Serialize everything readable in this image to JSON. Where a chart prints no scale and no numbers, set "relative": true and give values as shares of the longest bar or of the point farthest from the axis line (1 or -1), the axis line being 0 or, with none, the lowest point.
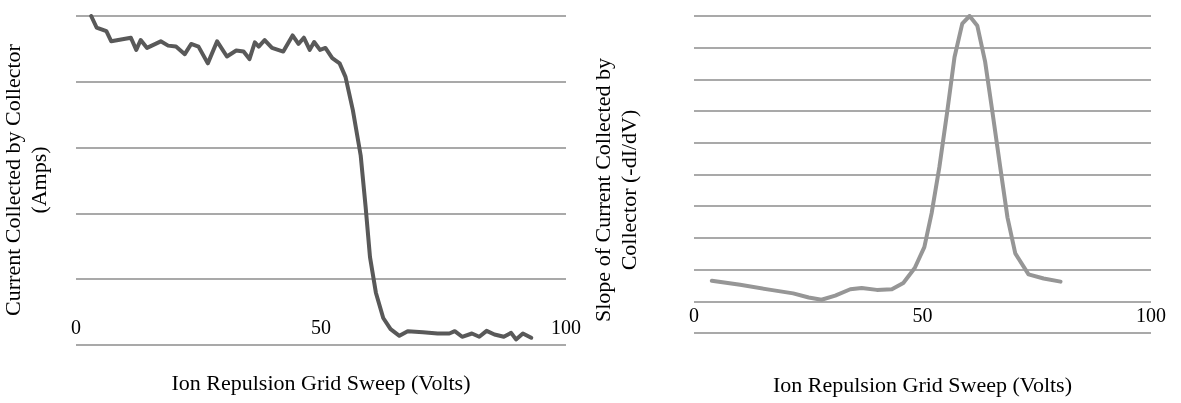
{
  "chart_data": [
    {
      "type": "line",
      "relative": true,
      "xlabel": "Ion Repulsion Grid Sweep (Volts)",
      "ylabel": "Current Collected by Collector (Amps)",
      "xlim": [
        0,
        100
      ],
      "xticks": [
        0,
        50,
        100
      ],
      "grid": "y",
      "marker": "none",
      "line_style": "solid",
      "series": [
        {
          "color": "#595959",
          "x": [
            3.1,
            4.2,
            6.2,
            7.2,
            11.2,
            12.3,
            13.2,
            14.5,
            17.3,
            18.8,
            20.4,
            22.2,
            23.5,
            25,
            26.9,
            28.8,
            30.8,
            32.7,
            34.2,
            35.4,
            36.5,
            37.3,
            38.5,
            40,
            42.3,
            44.2,
            45.4,
            46.5,
            47.7,
            48.6,
            49.8,
            50.9,
            52.3,
            53.8,
            55,
            56.5,
            58.1,
            59.1,
            60,
            61.2,
            62.7,
            64.2,
            66,
            67.7,
            70.8,
            73.8,
            76.2,
            77.3,
            78.8,
            80.8,
            82.3,
            83.8,
            85.4,
            87.3,
            88.8,
            89.8,
            91.2,
            92.9
          ],
          "values": [
            1.0,
            0.965,
            0.954,
            0.923,
            0.934,
            0.897,
            0.927,
            0.903,
            0.923,
            0.91,
            0.907,
            0.884,
            0.915,
            0.907,
            0.856,
            0.923,
            0.877,
            0.895,
            0.892,
            0.869,
            0.92,
            0.907,
            0.927,
            0.903,
            0.892,
            0.941,
            0.915,
            0.934,
            0.897,
            0.921,
            0.897,
            0.903,
            0.872,
            0.856,
            0.815,
            0.714,
            0.576,
            0.421,
            0.267,
            0.159,
            0.082,
            0.048,
            0.028,
            0.042,
            0.039,
            0.035,
            0.035,
            0.042,
            0.025,
            0.035,
            0.025,
            0.043,
            0.032,
            0.025,
            0.037,
            0.017,
            0.035,
            0.022
          ]
        }
      ]
    },
    {
      "type": "line",
      "relative": true,
      "xlabel": "Ion Repulsion Grid Sweep (Volts)",
      "ylabel": "Slope of Current Collected by Collector    (-dI/dV)",
      "xlim": [
        0,
        100
      ],
      "xticks": [
        0,
        50,
        100
      ],
      "grid": "y",
      "marker": "none",
      "line_style": "solid",
      "series": [
        {
          "color": "#969696",
          "x": [
            3.9,
            10.1,
            16.8,
            21.7,
            25.1,
            27.9,
            30.9,
            34.2,
            36.7,
            40,
            43.3,
            45.8,
            48.3,
            50.4,
            52,
            53.7,
            55.4,
            57,
            58.7,
            60.3,
            62,
            63.7,
            65.3,
            67,
            68.6,
            70.3,
            73.2,
            76.5,
            80.2
          ],
          "values": [
            0.165,
            0.152,
            0.136,
            0.125,
            0.112,
            0.105,
            0.118,
            0.138,
            0.142,
            0.136,
            0.138,
            0.158,
            0.205,
            0.271,
            0.378,
            0.524,
            0.697,
            0.87,
            0.976,
            1.0,
            0.969,
            0.856,
            0.697,
            0.524,
            0.364,
            0.251,
            0.185,
            0.172,
            0.162
          ]
        }
      ]
    }
  ]
}
